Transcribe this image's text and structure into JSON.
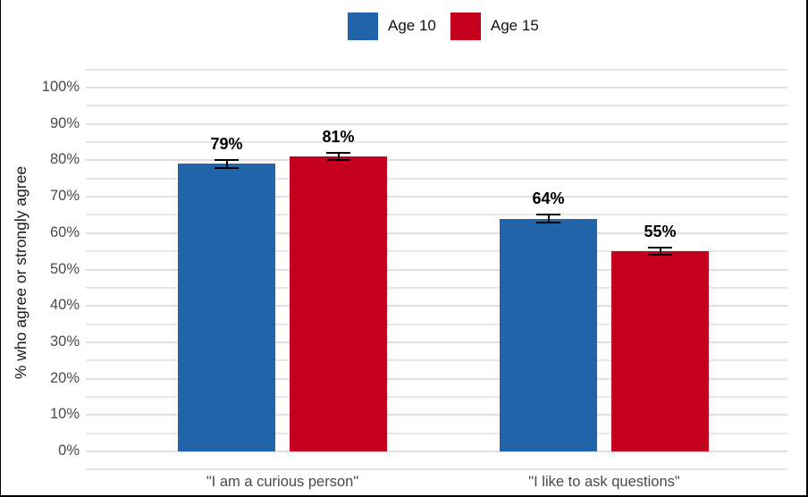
{
  "legend": {
    "items": [
      {
        "label": "Age 10",
        "color": "#2264A9"
      },
      {
        "label": "Age 15",
        "color": "#C5001E"
      }
    ]
  },
  "axis": {
    "y_title": "% who agree or strongly agree",
    "y_ticks": [
      {
        "value": 0,
        "label": "0%"
      },
      {
        "value": 10,
        "label": "10%"
      },
      {
        "value": 20,
        "label": "20%"
      },
      {
        "value": 30,
        "label": "30%"
      },
      {
        "value": 40,
        "label": "40%"
      },
      {
        "value": 50,
        "label": "50%"
      },
      {
        "value": 60,
        "label": "60%"
      },
      {
        "value": 70,
        "label": "70%"
      },
      {
        "value": 80,
        "label": "80%"
      },
      {
        "value": 90,
        "label": "90%"
      },
      {
        "value": 100,
        "label": "100%"
      }
    ]
  },
  "chart_data": {
    "type": "bar",
    "title": "",
    "xlabel": "",
    "ylabel": "% who agree or strongly agree",
    "categories": [
      "\"I am a curious person\"",
      "\"I like to ask questions\""
    ],
    "series": [
      {
        "name": "Age 10",
        "color": "#2264A9",
        "values": [
          79,
          64
        ],
        "labels": [
          "79%",
          "64%"
        ]
      },
      {
        "name": "Age 15",
        "color": "#C5001E",
        "values": [
          81,
          55
        ],
        "labels": [
          "81%",
          "55%"
        ]
      }
    ],
    "error_bars": {
      "plus_minus_pct": 1
    },
    "ylim": [
      -5,
      105
    ],
    "ytick_step_labeled": 10,
    "grid_step": 5,
    "grid": true,
    "legend_position": "top-center"
  }
}
